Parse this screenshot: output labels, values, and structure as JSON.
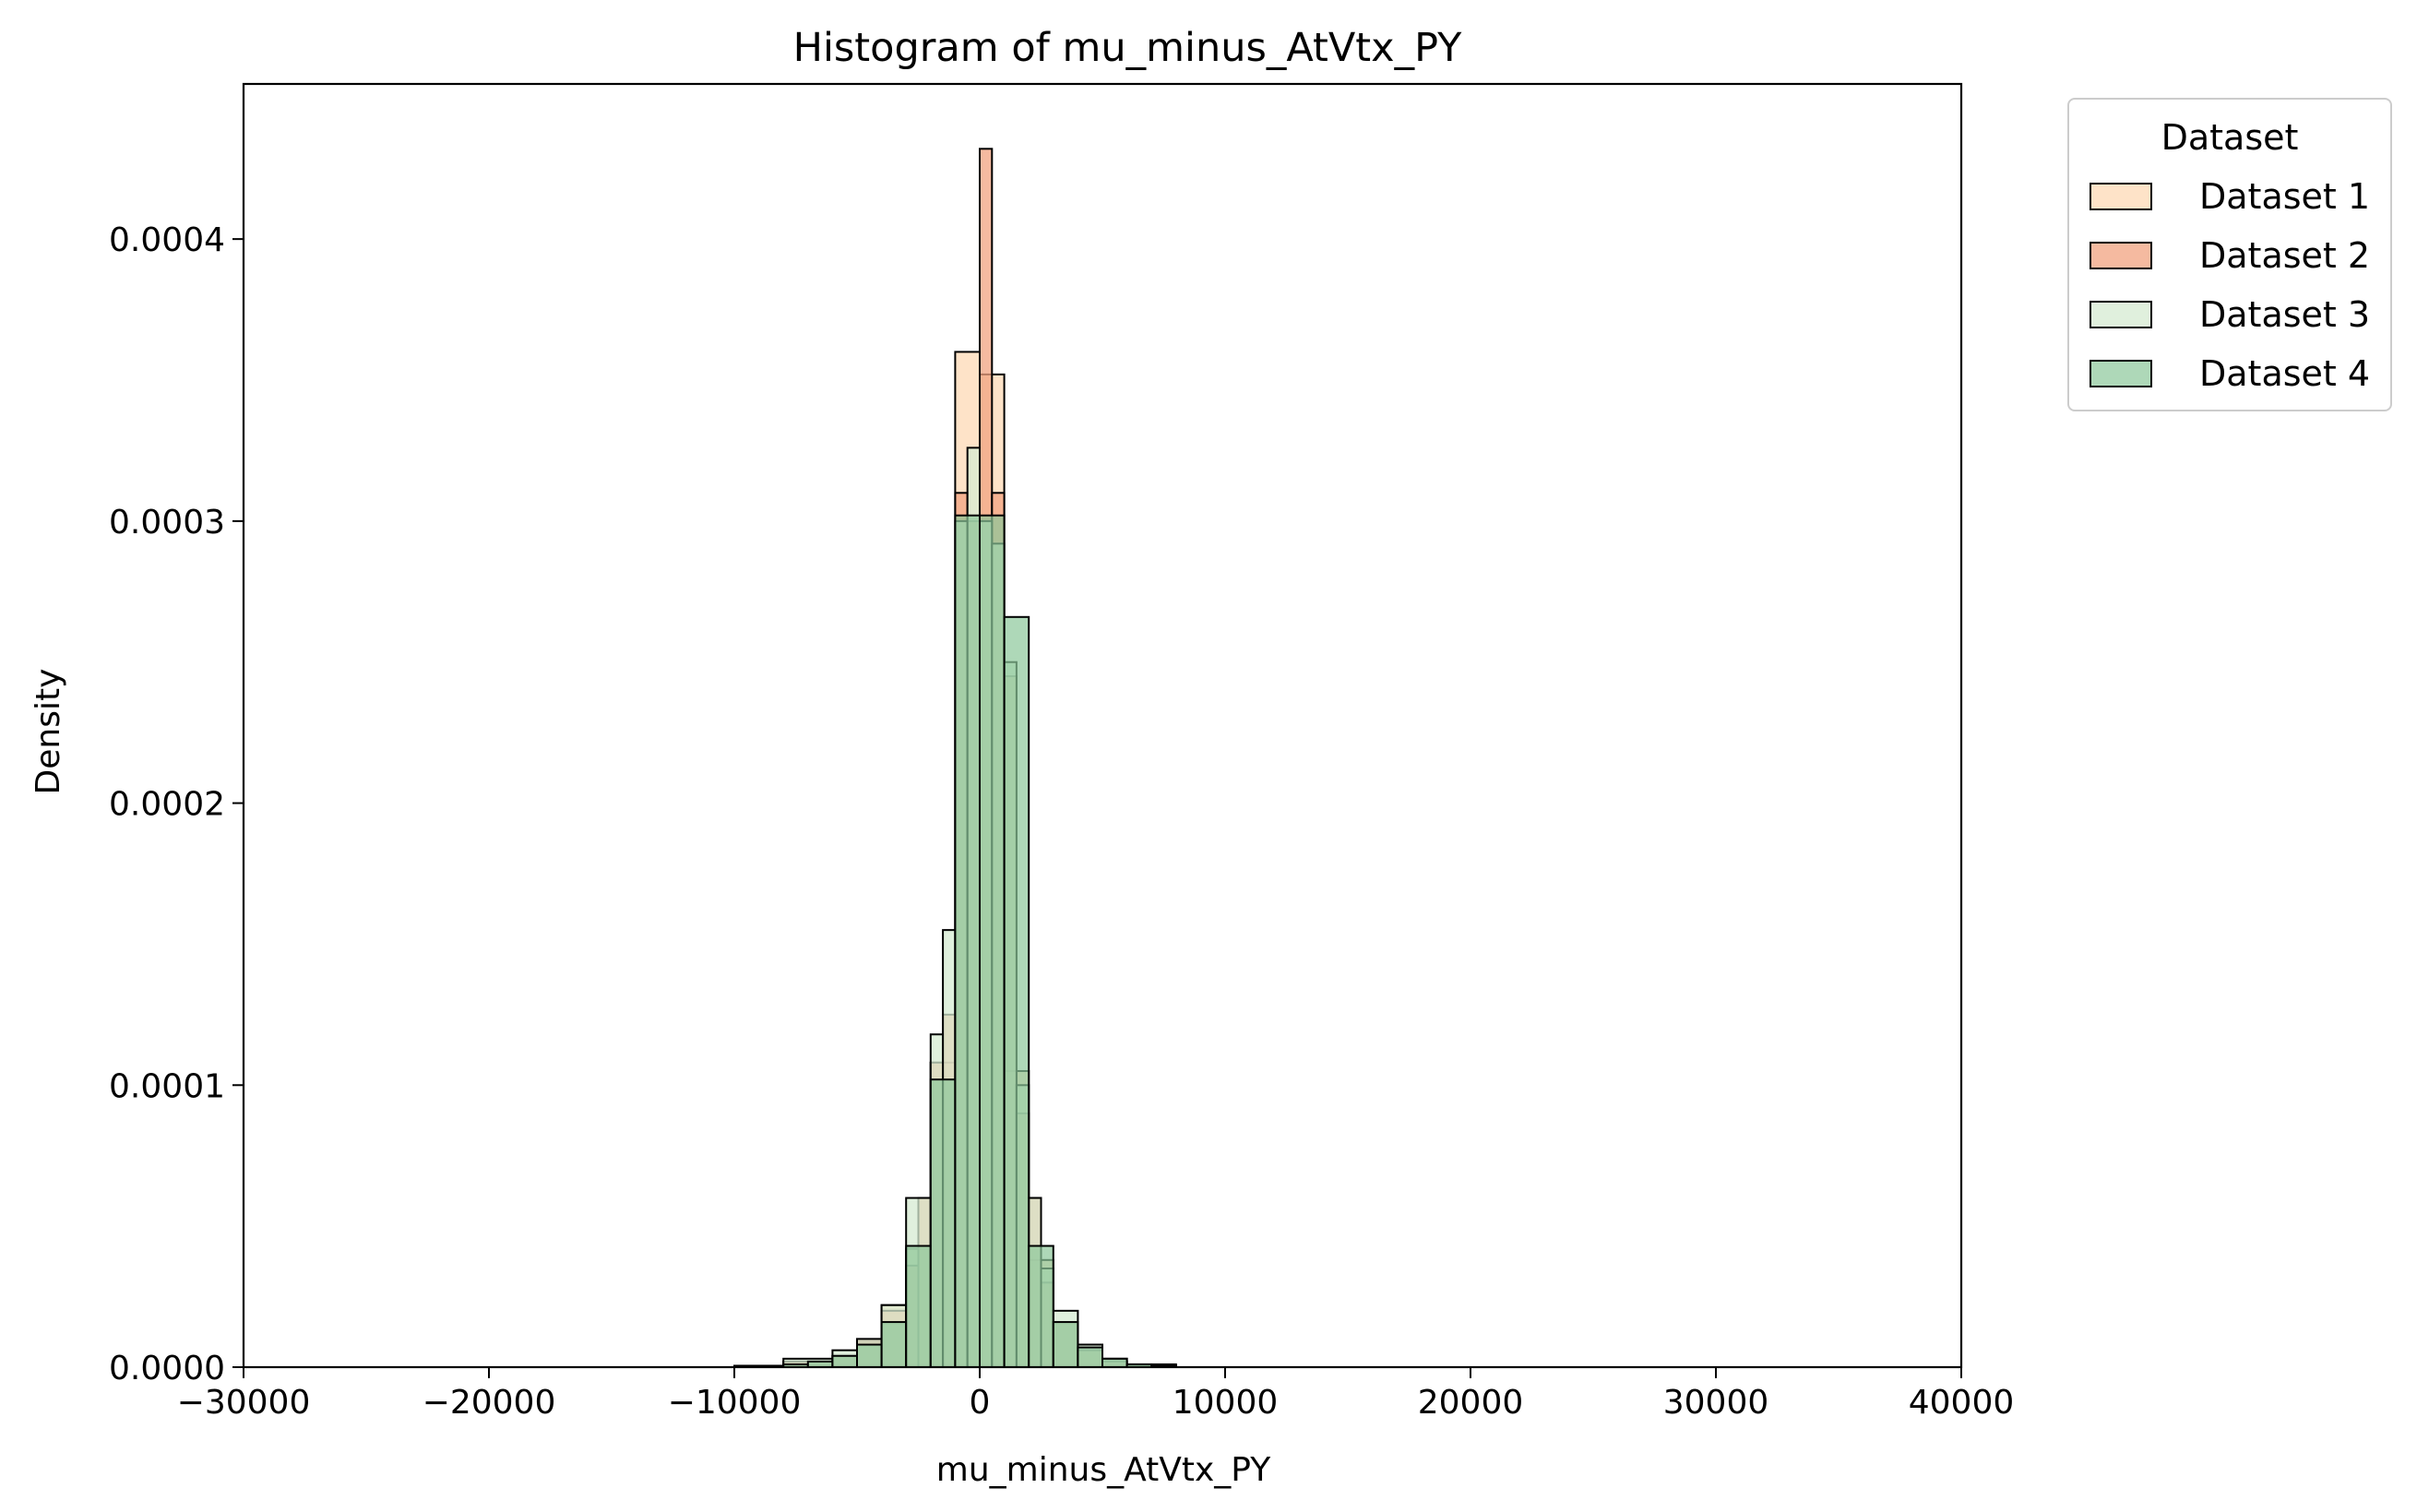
{
  "chart_data": {
    "type": "bar",
    "title": "Histogram of mu_minus_AtVtx_PY",
    "xlabel": "mu_minus_AtVtx_PY",
    "ylabel": "Density",
    "xlim": [
      -30000,
      40000
    ],
    "ylim": [
      0,
      0.000455
    ],
    "x_ticks": [
      -30000,
      -20000,
      -10000,
      0,
      10000,
      20000,
      30000,
      40000
    ],
    "x_tick_labels": [
      "−30000",
      "−20000",
      "−10000",
      "0",
      "10000",
      "20000",
      "30000",
      "40000"
    ],
    "y_ticks": [
      0,
      0.0001,
      0.0002,
      0.0003,
      0.0004
    ],
    "y_tick_labels": [
      "0.0000",
      "0.0001",
      "0.0002",
      "0.0003",
      "0.0004"
    ],
    "grid": false,
    "legend_title": "Dataset",
    "legend_position": "outside upper right",
    "series": [
      {
        "name": "Dataset 1",
        "color": "#fdd9b5",
        "opacity": 0.75,
        "bins": [
          [
            -10000,
            -8000,
            5e-07
          ],
          [
            -8000,
            -6000,
            2e-06
          ],
          [
            -6000,
            -5000,
            4e-06
          ],
          [
            -5000,
            -4000,
            9e-06
          ],
          [
            -4000,
            -3000,
            2.2e-05
          ],
          [
            -3000,
            -2000,
            4.2e-05
          ],
          [
            -2000,
            -1000,
            0.000108
          ],
          [
            -1000,
            0,
            0.00036
          ],
          [
            0,
            1000,
            0.000352
          ],
          [
            1000,
            2000,
            0.000105
          ],
          [
            2000,
            3000,
            3.8e-05
          ],
          [
            3000,
            4000,
            1.6e-05
          ],
          [
            4000,
            5000,
            6e-06
          ],
          [
            5000,
            6000,
            2e-06
          ],
          [
            6000,
            8000,
            8e-07
          ]
        ]
      },
      {
        "name": "Dataset 2",
        "color": "#f2a380",
        "opacity": 0.75,
        "bins": [
          [
            -10000,
            -8000,
            4e-07
          ],
          [
            -8000,
            -6000,
            2e-06
          ],
          [
            -6000,
            -5000,
            4e-06
          ],
          [
            -5000,
            -4000,
            1e-05
          ],
          [
            -4000,
            -3000,
            2e-05
          ],
          [
            -3000,
            -2500,
            3.6e-05
          ],
          [
            -2500,
            -2000,
            6e-05
          ],
          [
            -2000,
            -1500,
            0.000108
          ],
          [
            -1500,
            -1000,
            0.000125
          ],
          [
            -1000,
            -500,
            0.00031
          ],
          [
            -500,
            0,
            0.0003
          ],
          [
            0,
            500,
            0.000432
          ],
          [
            500,
            1000,
            0.00031
          ],
          [
            1000,
            1500,
            0.000245
          ],
          [
            1500,
            2000,
            9e-05
          ],
          [
            2000,
            2500,
            6e-05
          ],
          [
            2500,
            3000,
            3e-05
          ],
          [
            3000,
            4000,
            1.6e-05
          ],
          [
            4000,
            5000,
            6e-06
          ],
          [
            5000,
            6000,
            2e-06
          ],
          [
            6000,
            8000,
            7e-07
          ]
        ]
      },
      {
        "name": "Dataset 3",
        "color": "#d5ebd1",
        "opacity": 0.75,
        "bins": [
          [
            -10000,
            -8000,
            5e-07
          ],
          [
            -8000,
            -6000,
            3e-06
          ],
          [
            -6000,
            -5000,
            6e-06
          ],
          [
            -5000,
            -4000,
            1e-05
          ],
          [
            -4000,
            -3000,
            2.2e-05
          ],
          [
            -3000,
            -2000,
            6e-05
          ],
          [
            -2000,
            -1500,
            0.000118
          ],
          [
            -1500,
            -1000,
            0.000155
          ],
          [
            -1000,
            -500,
            0.0003
          ],
          [
            -500,
            0,
            0.000326
          ],
          [
            0,
            500,
            0.0003
          ],
          [
            500,
            1000,
            0.000292
          ],
          [
            1000,
            1500,
            0.00025
          ],
          [
            1500,
            2000,
            0.0001
          ],
          [
            2000,
            2500,
            6e-05
          ],
          [
            2500,
            3000,
            3.5e-05
          ],
          [
            3000,
            4000,
            2e-05
          ],
          [
            4000,
            5000,
            8e-06
          ],
          [
            5000,
            6000,
            3e-06
          ],
          [
            6000,
            8000,
            1e-06
          ]
        ]
      },
      {
        "name": "Dataset 4",
        "color": "#8bc79a",
        "opacity": 0.7,
        "bins": [
          [
            -10000,
            -8000,
            4e-07
          ],
          [
            -8000,
            -7000,
            1e-06
          ],
          [
            -7000,
            -6000,
            2e-06
          ],
          [
            -6000,
            -5000,
            4e-06
          ],
          [
            -5000,
            -4000,
            8e-06
          ],
          [
            -4000,
            -3000,
            1.6e-05
          ],
          [
            -3000,
            -2000,
            4.3e-05
          ],
          [
            -2000,
            -1000,
            0.000102
          ],
          [
            -1000,
            0,
            0.000302
          ],
          [
            0,
            1000,
            0.000302
          ],
          [
            1000,
            2000,
            0.000266
          ],
          [
            2000,
            3000,
            4.3e-05
          ],
          [
            3000,
            4000,
            1.6e-05
          ],
          [
            4000,
            5000,
            7e-06
          ],
          [
            5000,
            6000,
            3e-06
          ],
          [
            6000,
            7000,
            1e-06
          ],
          [
            7000,
            8000,
            5e-07
          ]
        ]
      }
    ]
  }
}
